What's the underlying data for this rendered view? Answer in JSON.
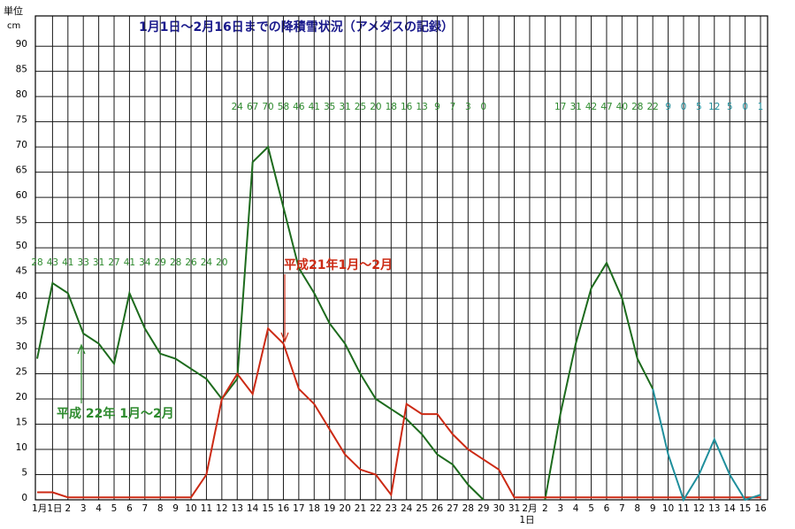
{
  "chart_data": {
    "type": "line",
    "title": "1月1日～2月16日までの降積雪状況（アメダスの記録）",
    "y_axis_label": "単位",
    "y_axis_unit": "cm",
    "categories": [
      null,
      "1月1日",
      "2",
      "3",
      "4",
      "5",
      "6",
      "7",
      "8",
      "9",
      "10",
      "11",
      "12",
      "13",
      "14",
      "15",
      "16",
      "17",
      "18",
      "19",
      "20",
      "21",
      "22",
      "23",
      "24",
      "25",
      "26",
      "27",
      "28",
      "29",
      "30",
      "31",
      "2月",
      "2",
      "3",
      "4",
      "5",
      "6",
      "7",
      "8",
      "9",
      "10",
      "11",
      "12",
      "13",
      "14",
      "15",
      "16"
    ],
    "x_sublabel": "1日",
    "ylim": [
      0,
      96
    ],
    "yticks": [
      0,
      5,
      10,
      15,
      20,
      25,
      30,
      35,
      40,
      45,
      50,
      55,
      60,
      65,
      70,
      75,
      80,
      85,
      90
    ],
    "grid": true,
    "series": [
      {
        "name": "平成 22年 1月～2月",
        "color": "#1d6b1d",
        "label_color": "#2e8b2e",
        "values": [
          28,
          43,
          41,
          33,
          31,
          27,
          41,
          34,
          29,
          28,
          26,
          24,
          20,
          24,
          67,
          70,
          58,
          46,
          41,
          35,
          31,
          25,
          20,
          18,
          16,
          13,
          9,
          7,
          3,
          0,
          null,
          null,
          null,
          0,
          17,
          31,
          42,
          47,
          40,
          28,
          22,
          null,
          null,
          null,
          null,
          null,
          null,
          null
        ]
      },
      {
        "name": "平成21年1月～2月",
        "color": "#cc2a14",
        "values": [
          1.5,
          1.5,
          0.5,
          0.5,
          0.5,
          0.5,
          0.5,
          0.5,
          0.5,
          0.5,
          0.5,
          5,
          20,
          25,
          21,
          34,
          31,
          22,
          19,
          14,
          9,
          6,
          5,
          1,
          19,
          17,
          17,
          13,
          10,
          8,
          6,
          0.5,
          0.5,
          0.5,
          0.5,
          0.5,
          0.5,
          0.5,
          0.5,
          0.5,
          0.5,
          0.5,
          0.5,
          0.5,
          0.5,
          0.5,
          0.5,
          0.5
        ]
      },
      {
        "color": "#1f8f9c",
        "label_color": "#1f8f9c",
        "values": [
          null,
          null,
          null,
          null,
          null,
          null,
          null,
          null,
          null,
          null,
          null,
          null,
          null,
          null,
          null,
          null,
          null,
          null,
          null,
          null,
          null,
          null,
          null,
          null,
          null,
          null,
          null,
          null,
          null,
          null,
          null,
          null,
          null,
          null,
          null,
          null,
          null,
          null,
          null,
          null,
          22,
          9,
          0,
          5,
          12,
          5,
          0,
          1
        ]
      }
    ]
  }
}
